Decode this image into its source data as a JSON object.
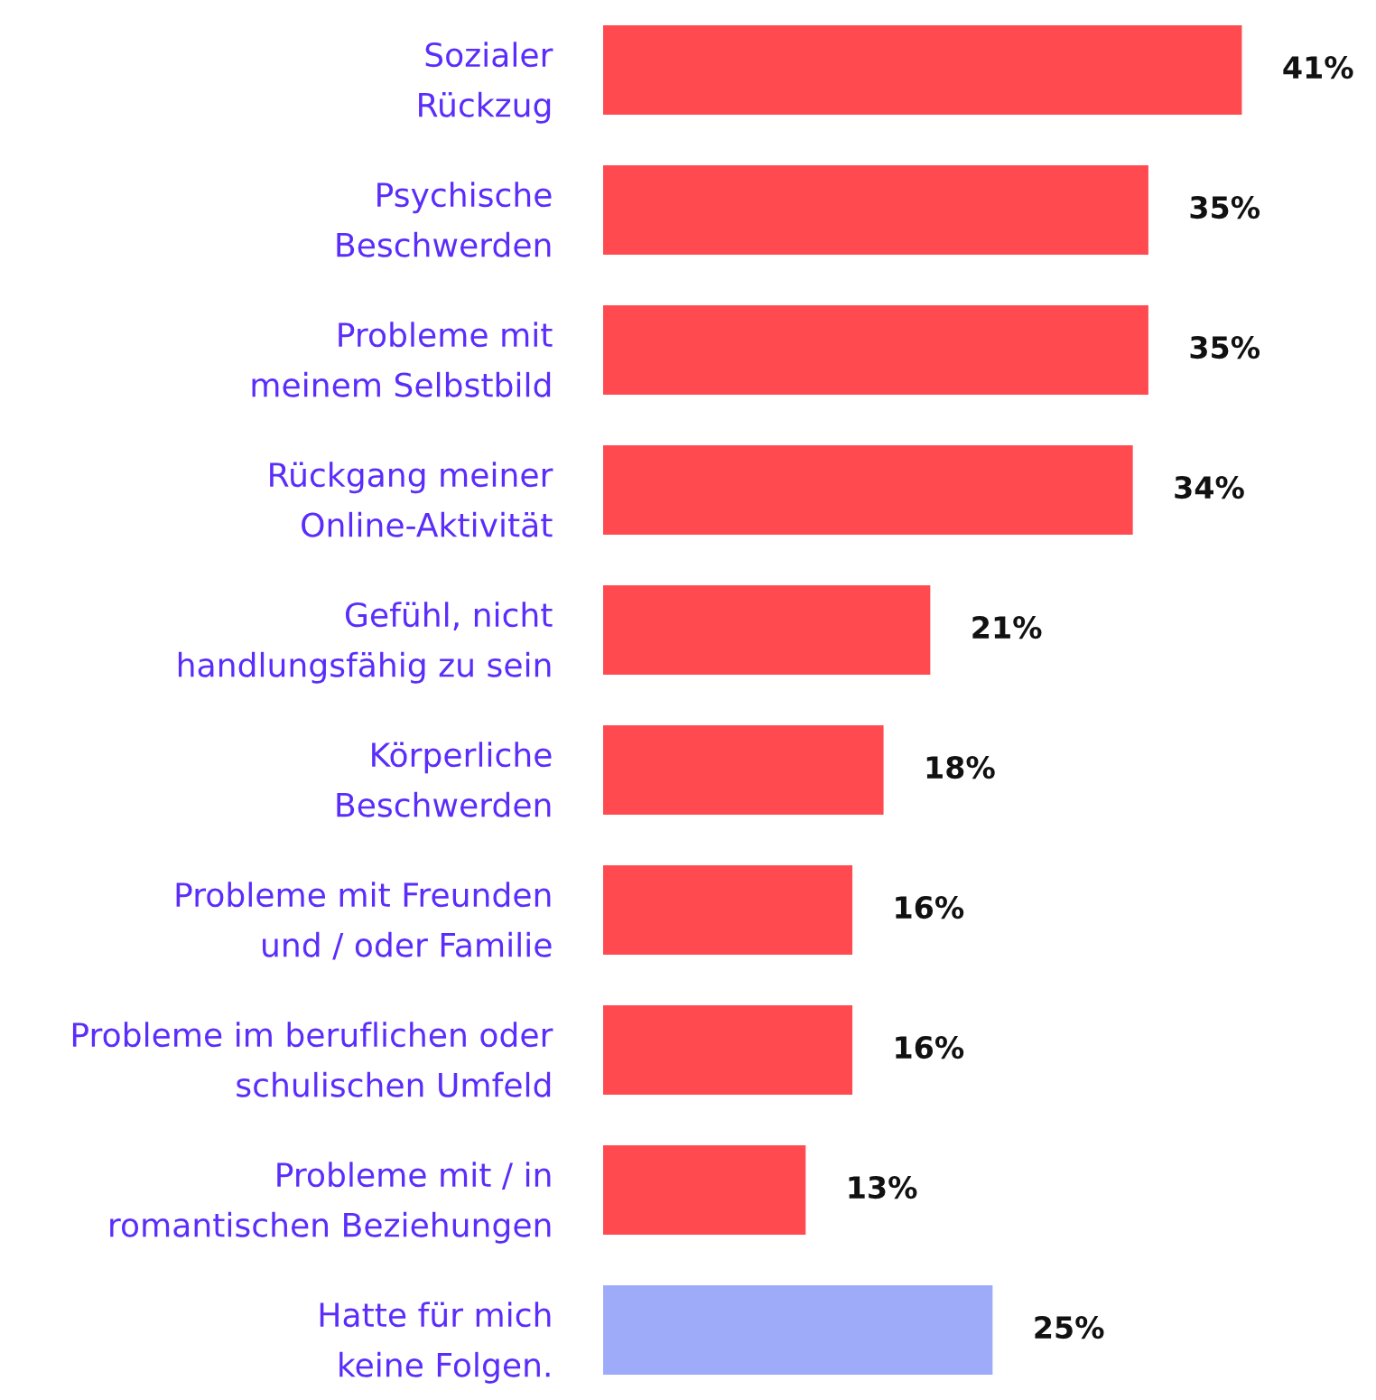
{
  "chart_data": {
    "type": "bar",
    "orientation": "horizontal",
    "grid": false,
    "legend": false,
    "tick_labels": "y",
    "categories": [
      "Sozialer\nRückzug",
      "Psychische\nBeschwerden",
      "Probleme mit\nmeinem Selbstbild",
      "Rückgang meiner\nOnline-Aktivität",
      "Gefühl, nicht\nhandlungsfähig zu sein",
      "Körperliche\nBeschwerden",
      "Probleme mit Freunden\nund / oder Familie",
      "Probleme im beruflichen oder\nschulischen Umfeld",
      "Probleme mit / in\nromantischen Beziehungen",
      "Hatte für mich\nkeine Folgen."
    ],
    "values": [
      41,
      35,
      35,
      34,
      21,
      18,
      16,
      16,
      13,
      25
    ],
    "colors": [
      "#ff4b4f",
      "#ff4b4f",
      "#ff4b4f",
      "#ff4b4f",
      "#ff4b4f",
      "#ff4b4f",
      "#ff4b4f",
      "#ff4b4f",
      "#ff4b4f",
      "#9eabf9"
    ],
    "value_labels": [
      "41%",
      "35%",
      "35%",
      "34%",
      "21%",
      "18%",
      "16%",
      "16%",
      "13%",
      "25%"
    ]
  }
}
